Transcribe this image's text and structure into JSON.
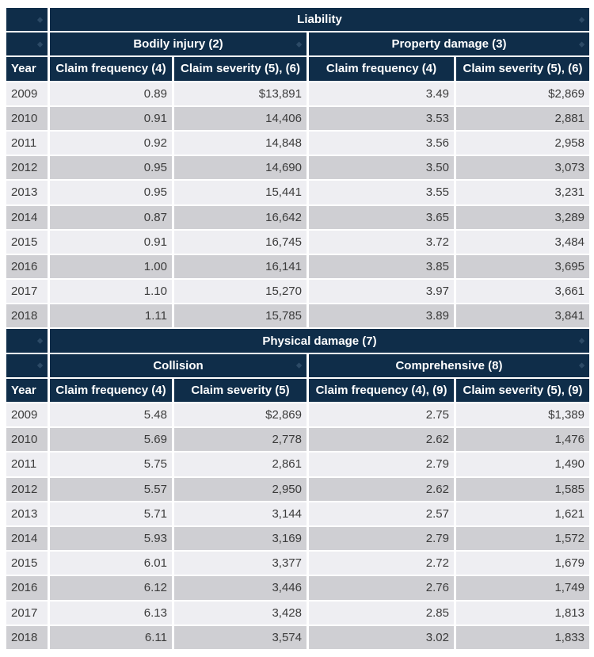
{
  "sections": [
    {
      "title": "Liability",
      "groups": [
        "Bodily injury (2)",
        "Property damage (3)"
      ],
      "columns": [
        "Year",
        "Claim frequency (4)",
        "Claim severity (5), (6)",
        "Claim frequency (4)",
        "Claim severity (5), (6)"
      ],
      "rows": [
        [
          "2009",
          "0.89",
          "$13,891",
          "3.49",
          "$2,869"
        ],
        [
          "2010",
          "0.91",
          "14,406",
          "3.53",
          "2,881"
        ],
        [
          "2011",
          "0.92",
          "14,848",
          "3.56",
          "2,958"
        ],
        [
          "2012",
          "0.95",
          "14,690",
          "3.50",
          "3,073"
        ],
        [
          "2013",
          "0.95",
          "15,441",
          "3.55",
          "3,231"
        ],
        [
          "2014",
          "0.87",
          "16,642",
          "3.65",
          "3,289"
        ],
        [
          "2015",
          "0.91",
          "16,745",
          "3.72",
          "3,484"
        ],
        [
          "2016",
          "1.00",
          "16,141",
          "3.85",
          "3,695"
        ],
        [
          "2017",
          "1.10",
          "15,270",
          "3.97",
          "3,661"
        ],
        [
          "2018",
          "1.11",
          "15,785",
          "3.89",
          "3,841"
        ]
      ]
    },
    {
      "title": "Physical damage (7)",
      "groups": [
        "Collision",
        "Comprehensive (8)"
      ],
      "columns": [
        "Year",
        "Claim frequency (4)",
        "Claim severity (5)",
        "Claim frequency (4), (9)",
        "Claim severity (5), (9)"
      ],
      "rows": [
        [
          "2009",
          "5.48",
          "$2,869",
          "2.75",
          "$1,389"
        ],
        [
          "2010",
          "5.69",
          "2,778",
          "2.62",
          "1,476"
        ],
        [
          "2011",
          "5.75",
          "2,861",
          "2.79",
          "1,490"
        ],
        [
          "2012",
          "5.57",
          "2,950",
          "2.62",
          "1,585"
        ],
        [
          "2013",
          "5.71",
          "3,144",
          "2.57",
          "1,621"
        ],
        [
          "2014",
          "5.93",
          "3,169",
          "2.79",
          "1,572"
        ],
        [
          "2015",
          "6.01",
          "3,377",
          "2.72",
          "1,679"
        ],
        [
          "2016",
          "6.12",
          "3,446",
          "2.76",
          "1,749"
        ],
        [
          "2017",
          "6.13",
          "3,428",
          "2.85",
          "1,813"
        ],
        [
          "2018",
          "6.11",
          "3,574",
          "3.02",
          "1,833"
        ]
      ]
    }
  ],
  "sort_icon": "sort-arrows-icon",
  "colors": {
    "header": "#0f2d49",
    "row_light": "#eeeef2",
    "row_dark": "#cfcfd3",
    "text": "#3b3b3b"
  }
}
